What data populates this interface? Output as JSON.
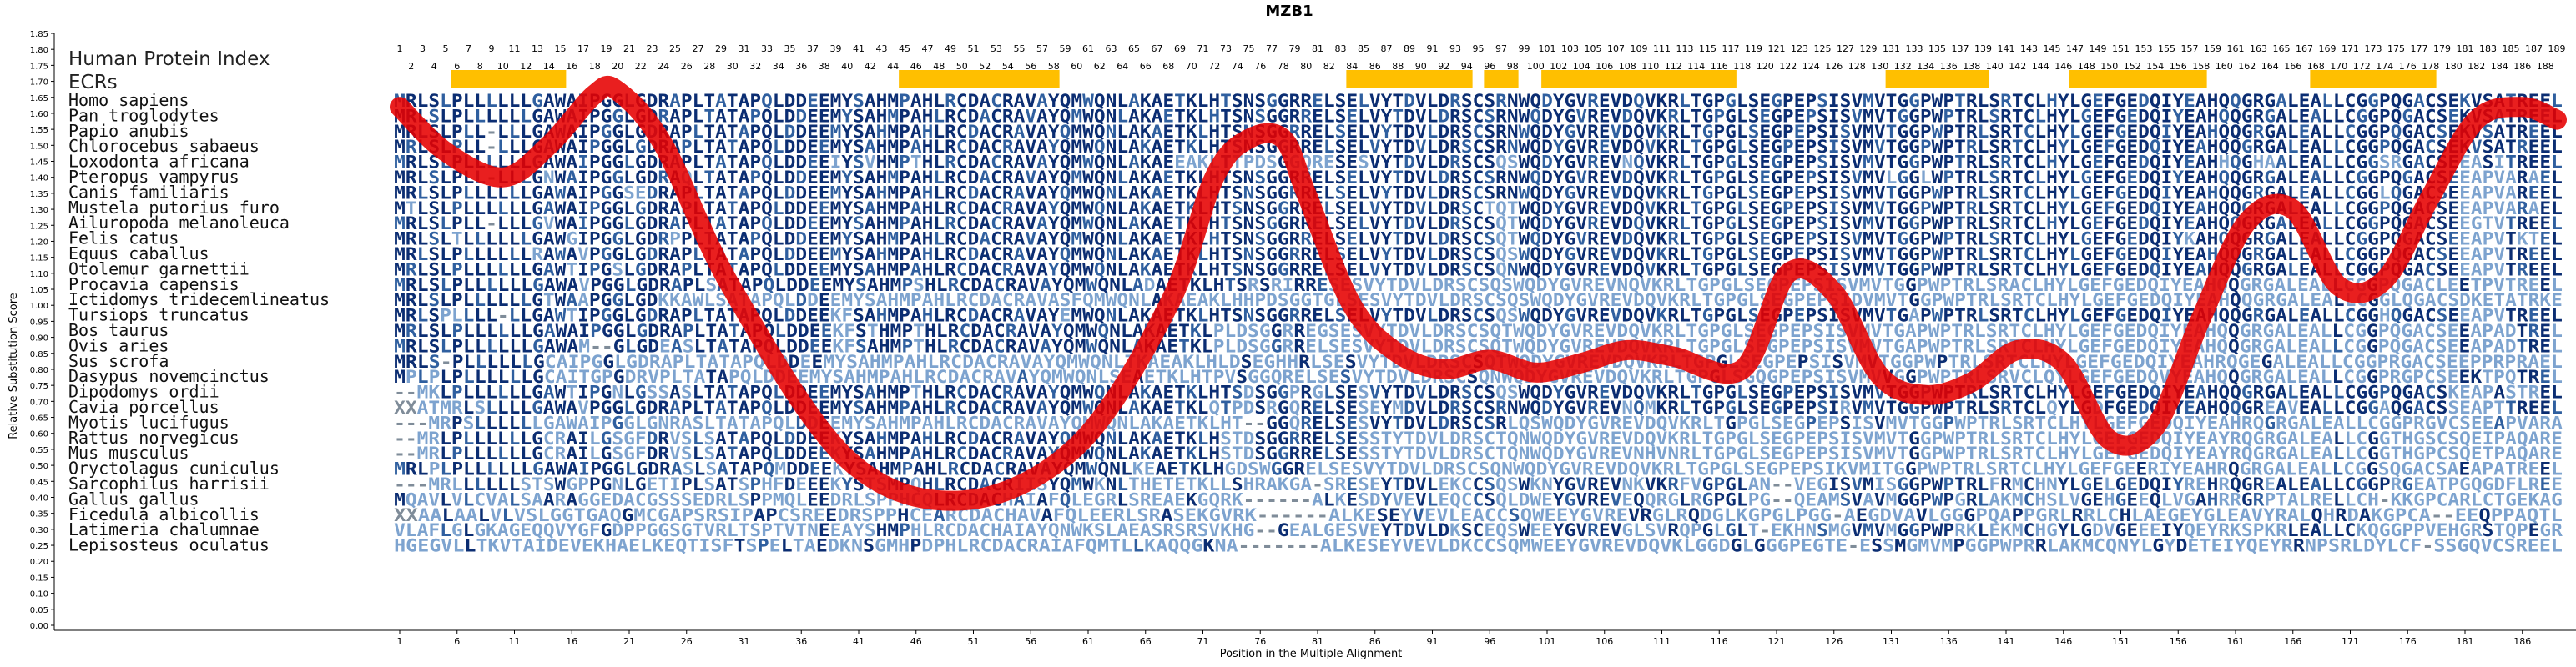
{
  "chart_data": {
    "type": "line",
    "title": "MZB1",
    "xlabel": "Position in the Multiple Alignment",
    "ylabel": "Relative Substitution Score",
    "ylim": [
      0,
      1.85
    ],
    "y_ticks": [
      "0.00",
      "0.05",
      "0.10",
      "0.15",
      "0.20",
      "0.25",
      "0.30",
      "0.35",
      "0.40",
      "0.45",
      "0.50",
      "0.55",
      "0.60",
      "0.65",
      "0.70",
      "0.75",
      "0.80",
      "0.85",
      "0.90",
      "0.95",
      "1.00",
      "1.05",
      "1.10",
      "1.15",
      "1.20",
      "1.25",
      "1.30",
      "1.35",
      "1.40",
      "1.45",
      "1.50",
      "1.55",
      "1.60",
      "1.65",
      "1.70",
      "1.75",
      "1.80",
      "1.85"
    ],
    "x_ticks": [
      1,
      6,
      11,
      16,
      21,
      26,
      31,
      36,
      41,
      46,
      51,
      56,
      61,
      66,
      71,
      76,
      81,
      86,
      91,
      96,
      101,
      106,
      111,
      116,
      121,
      126,
      131,
      136,
      141,
      146,
      151,
      156,
      161,
      166,
      171,
      176,
      181,
      186
    ],
    "alignment_length": 189,
    "human_protein_index_label": "Human Protein Index",
    "ecrs_label": "ECRs",
    "ecr_regions": [
      [
        6,
        15
      ],
      [
        45,
        58
      ],
      [
        84,
        94
      ],
      [
        96,
        98
      ],
      [
        101,
        117
      ],
      [
        131,
        139
      ],
      [
        147,
        158
      ],
      [
        168,
        178
      ]
    ],
    "curve": {
      "name": "",
      "x": [
        1,
        5,
        10,
        14,
        18,
        20,
        24,
        30,
        40,
        50,
        60,
        68,
        72,
        75,
        78,
        80,
        84,
        88,
        92,
        96,
        100,
        104,
        108,
        112,
        118,
        122,
        126,
        130,
        134,
        138,
        142,
        146,
        150,
        154,
        158,
        162,
        166,
        170,
        174,
        178,
        182,
        186,
        189
      ],
      "y": [
        1.62,
        1.48,
        1.4,
        1.5,
        1.66,
        1.67,
        1.5,
        1.05,
        0.52,
        0.39,
        0.56,
        1.0,
        1.4,
        1.52,
        1.52,
        1.35,
        1.0,
        0.85,
        0.8,
        0.83,
        0.79,
        0.82,
        0.86,
        0.84,
        0.8,
        1.1,
        1.04,
        0.78,
        0.72,
        0.76,
        0.86,
        0.82,
        0.58,
        0.62,
        0.96,
        1.26,
        1.3,
        1.06,
        1.08,
        1.34,
        1.58,
        1.62,
        1.58
      ]
    },
    "species": [
      {
        "name": "Homo sapiens",
        "seq": "MRLSLPLLLLLLGAWAIPGGLGDRAPLTATAPQLDDEEMYSAHMPAHLRCDACRAVAYQMWQNLAKAETKLHTSNSGGRRELSELVYTDVLDRSCSRNWQDYGVREVDQVKRLTGPGLSEGPEPSISVMVTGGPWPTRLSRTCLHYLGEFGEDQIYEAHQQGRGALEALLCGGPQGACSEKVSATREEL"
      },
      {
        "name": "Pan troglodytes",
        "seq": "MRLSLPLLLLLLGAWAIPGGLGDRAPLTATAPQLDDEEMYSAHMPAHLRCDACRAVAYQMWQNLAKAETKLHTSNSGGRRELSELVYTDVLDRSCSRNWQDYGVREVDQVKRLTGPGLSEGPEPSISVMVTGGPWPTRLSRTCLHYLGEFGEDQIYEAHQQGRGALEALLCGGPQGACSEKVSATREEL"
      },
      {
        "name": "Papio anubis",
        "seq": "MRLSLPLL-LLLGAWAIPGGLGDRAPLTATAPQLDDEEMYSAHMPAHLRCDACRAVAYQMWQNLAKAETKLHTSNSGGRRELSELVYTDVLDRSCSRNWQDYGVREVDQVKRLTGPGLSEGPEPSISVMVTGGPWPTRLSRTCLHYLGEFGEDQIYEAHQQGRGALEALLCGGPQGACSEKVSATREEL"
      },
      {
        "name": "Chlorocebus sabaeus",
        "seq": "MRLSLPLL-LLLGAWAIPGGLGDRAPLTATAPQLDDEEMYSAHMPAHLRCDACRAVAYQMWQNLAKAETKLHTSNSGGRRELSELVYTDVLDRSCSRNWQDYGVREVDQVKRLTGPGLSEGPEPSISVMVTGGPWPTRLSRTCLHYLGEFGEDQIYEAHQQGRGALEALLCGGPQGACSEKVSATREEL"
      },
      {
        "name": "Loxodonta africana",
        "seq": "MRLSLPLLLLLLGAWAIPGGLGDRAPLTATAPQLDDEEIYSVHMPTHLRCDACRAVAYQMWQNLAKAEEAKLTTPDSGGQRESESVYTDVLDRSCSQSWQDYGVREVNQVKRLTGPGLSEGPEPSISVMVTGGPWPTRLSRTCLHYLGEFGEDQIYEAHHQGHAALEALLCGGSRGACSEEASITREEL"
      },
      {
        "name": "Pteropus vampyrus",
        "seq": "MRLSLPLL-LLLGNWAIPGGLGDRAQLTATAPQLDDEEMYSAHMPAHLRCDACRAVAYQMWQNLAKAETKLHTSNSGGRRELSELVYTDVLDRSCSRNWQDYGVREVDQVKRLTGPGLSEGPEPSISVMVLGGLWPTRLSRTCLHYLGEFGEDQIYEAHQQGRGALEALLCGGPQGACSEEAPVARAEL"
      },
      {
        "name": "Canis familiaris",
        "seq": "MRLSLPLLLLLLGAWAIPGGSEDRAPLTATAPQLDDEEMYSAHMPAHLRCDACRAVAYQMWQNLAKAETKLHTSNSGGRRELSELVYTDVLDRSCSRNWQDYGVREVDQVKRLTGPGLSEGPEPSISVMVTGGPWPTRLSRTCLHYLGEFGEDQIYEAHQQGRGALEALLCGGLQGACSEEAPVAREEL"
      },
      {
        "name": "Mustela putorius furo",
        "seq": "MTLSLPLLLLLLGAWAIPGGLGDRAPLTATAPQLDDEEMYSAHMPAHLRCDACRAVAYQMWQNLAKAETKLHTSNSGGRRELSELVYTDVLDRSCTQTWQDYGVREVDQVKRLTGPGLSEGPEPSISVMVTGGPWPTRLSRTCLHYLGEFGEDQIYEAHQQGRGALEALLCGGPQGACSEEAPVARAEL"
      },
      {
        "name": "Ailuropoda melanoleuca",
        "seq": "MRLSLPLL-LLLGVWAIPGGLGDRAPLTATAPQLDDEEMYSAHMPAHLRCDACRAVAYQMWQNLAKAETKLHTSNSGGRRELSELVYTDVLDRSCSQTWQDYGVREVDQVKRLTGPGLSEGPEPSISVMVTGGPWPTRLSRTCLHYLGEFGEDQIYEAHQQGRGALEALLCGGPQGACSEEGTVTREEL"
      },
      {
        "name": "Felis catus",
        "seq": "MRLSLTLLLLLLGAWGIPGGLGDRPPLTATAPQLDDEEMYSAHMPAHLRCDACRAVAYQMWQNLAKAETKLHTSNSGGRRELSELVYTDVLDRSCSQTWQDYGVREVDQVKRLTGPGLSEGPEPSISVMVTGGPWPTRLSRTCLHYLGEFGEDQIYKAHQQGRGALEALLCGGPQGACSEEAPVTKTEL"
      },
      {
        "name": "Equus caballus",
        "seq": "MRLSLPLLLLLLRAWAVPGGLGDRAPLTATAPQLDDEEMYSAHMPAHLRCDACRAVAYQMWQNLAKAETKLHTSNSGGRRELSELVYTDVLDRSCSQSWQDYGVREVDQVKRLTGPGLSEGPEPSISVMVTGGPWPTRLSRTCLHYLGEFGEDQIYEAHQQGRGALEALLCGGPQGACSEEAPVTREEL"
      },
      {
        "name": "Otolemur garnettii",
        "seq": "MRLSLPLLLLLLGAWTIPGSLGDRAPLTATAPQLDDEEMYSAHMPAHLRCDACRAVAYQMWQNLAKAETKLHTSNSGGRRELSELVYTDVLDRSCSQNWQDYGVREVDQVKRLTGPGLSEGPEPSISVMVTGGPWPTRLSRTCLHYLGEFGEDQIYEAHQQGRGALEALLCGGPQGACSEEAPVTREEL"
      },
      {
        "name": "Procavia capensis",
        "seq": "MRLSLPLLLLLLGAWAVPGGLGDRAPLSATAPQLDDEEMYSAHMPSHLRCDACRAVAYQMWQNLADAETKLHTSRSRIRRESESVYTDVLDRSCSQSWQDYGVREVNQVKRLTGPGLSEGPEPSISVMVTGGPWPTRLSRACLHYLGEFGEDQIYEAHQQGRGALEALLCGGPQGACLEETPVTREEL"
      },
      {
        "name": "Ictidomys tridecemlineatus",
        "seq": "MRLSLPLLLLLLGTWAAPGGLGDKKAWLSATAPQLDDEEMYSAHMPAHLRCDACRAVASFQMWQNLAKAEAKLHHPDSGGTGLSESVYTDVLDRSCSQSWQDYGVREVDQVKRLTGPGLSEGPEPSIDVMVTGGPWPTRLSRTCLHYLGEFGEDQIYEAHQQGRGALEALLCGGLQGACSDKETATRKEL"
      },
      {
        "name": "Tursiops truncatus",
        "seq": "MRLSPLLLL-LLGAWTIPGGLGDRAPLTATAPQLDDEEKFSAHMPAHLRCDACRAVAYEMWQNLAKAETKLHTSNSGGRRELSELVYTDVLDRSCSQSWQDYGVREVDQVKRLTGPGLSEGPEPSISVMVTGAPWPTRLSRTCLHYLGEFGEDQIYEAHQQGRGALEALLCGGHQGACSEEAPVTREEL"
      },
      {
        "name": "Bos taurus",
        "seq": "MRLSLPLLLLLLGAWAIPGGLGDRAPLTATAPQLDDEEKFSTHMPTHLRCDACRAVAYQMWQNLAKAETKLPLDSGGRREGSESVYTDVLDRSCSQTWQDYGVREVDQVKRLTGPGLSEGPEPSISVMVTGAPWPTRLSRTCLHYLGEFGEDQIYEAHQQGRGALEALLCGGPQGACSEEAPADTREL"
      },
      {
        "name": "Ovis aries",
        "seq": "MRLSLPLLLLLLGAWAM--GLGDEASLTATAPQLDDEEKFSAHMPTHLRCDACRAVAYQMWQNLAKAETKLPLDSGGRRELSESVYTDVLDRSCSQTWQDYGVREVDQVKRLTGPGLSEGPEPSISVMVTGAPWPTRLSRTCLHYLGEFGEDQIYEAHQQGRGALEALLCGGPQGACSEEAPADTREL"
      },
      {
        "name": "Sus scrofa",
        "seq": "MRLS-PLLLLLLGCAIPGGLGDRAPLTATAPQLDDEEMYSAHMPAHLRCDACRAVAYQMWQNLTKAEAKLHLDSEGHHRLSESVYTDVLDRSCSQTWQDYGVREVDQVKRLTGPGLSEGPEPSISVMVTGGPWPTRLSRTCLHYLGEFGEDQIYEAHRQGEGALEALLCGGPRGACSEEPPRPRAEL"
      },
      {
        "name": "Dasypus novemcinctus",
        "seq": "MPLPLPLLLLLLGCAITGPGDRVPLTATAPQLDDEEMYSAHMPAHLRCDACRAVAYQMWQNLSEAETKLHTPVSGGQRELSESVYTDVLDRSCSQNWQDYGVREVDQVKRLTGPGLSGQGPEPSISVMVVGGPWPTRLSRVCLQYLGEFGEDQVYEAHQQGRGALEALLCGGPRGPCSEEKTPQTREL"
      },
      {
        "name": "Dipodomys ordii",
        "seq": "--MKLPLLLLLLGAWTIPGNLGSSASLTATAPQLDDEEMYSAHMPTHLRCDACRAVAYQMWQNLAKAETKLHTSDSGGPRGLSESVYTDVLDRSCSQSWQDYGVREVDQVKRLTGPGLSEGPEPSISVMVTGGPWPTRLSRTCLHYLGEFGEDQIYEAHQQGRGALEALLCGGPQGACSKEAPASTREL"
      },
      {
        "name": "Cavia porcellus",
        "seq": "XXATMRLSLLLLGAWAVPGGLGDRAPLTATAPQLDDEEMYSAHMPAHLRCDACRAVAYQMWQNLAKAETKLQTPDSRGQRELSESEYMDVLDRSCSRNWQDYGVREVNQMKRLTGPGLSEGPEPSIRVMVTGGPWPTRLSRTCLQYLGDFGEDQIYEAHQQGREAVEALLCGGAQGACSSEAPTTREEL"
      },
      {
        "name": "Myotis lucifugus",
        "seq": "---MRPSLLLLLLGAWAIPGGLGNRASLTATAPQLDDEEMYSAHMPAHLRCDACRAVAYQMWQNLAKAETKLHT--GGQRELSESVYTDVLDRSCSRLQSWQDYGVREVDQVKRLTGPGLSEGPEPSISVMVTGGPWPTRLSRTCLHYLGEFGEDQIYEAHRQGRGALEALLCGGPRGVCSEEAPVARAEL"
      },
      {
        "name": "Rattus norvegicus",
        "seq": "--MRLPLLLLLLGCRAILGSGFDRVSLSATAPQLDDEEKYSAHMPAHLRCDACRAVAYQMWQNLAKAETKLHSTDSGGRRELSESSTYTDVLDRSCTQNWQDYGVREVDQVKRLTGPGLSEGPEPSISVMVTGGPWPTRLSRTCLHYLGEFGEDQIYEAYRQGRGALEALLCGGTHGSCSQEIPAQAREL"
      },
      {
        "name": "Mus musculus",
        "seq": "--MRLPLLLLLLGCRAILGSGFDRVSLSATAPQLDDEEKYSAHMPAHLRCDACRAVAYQMWQNLAKAETKLHSTDSGGRRELSESSTYTDVLDRSCTQNWQDYGVREVNHVNRLTGPGLSEGPEPSISVMVTGGPWPTRLSRTCLHYLGEFGEDQIYEAYRQGRGALEALLCGGTHGPCSQETPAQAREL"
      },
      {
        "name": "Oryctolagus cuniculus",
        "seq": "MRLPLPLLLLLLGAWAIPGGLGDRASLSATAPQMDDEEKYSAHMPAHLRCDACRAVAYQMWQNLKEAETKLHGDSWGGRELSESVYTDVLDRSCSQNWQDYGVREVDQVKRLTGPGLSEGPEPSIKVMITGGPWPTRLSRTCLHYLGEFGEERIYEAHRQGRGALEALLCGGSQGACSAEAPATREEL"
      },
      {
        "name": "Sarcophilus harrisii",
        "seq": "---MRLLLLLLSTSWGPPGNLGETIPLSATSPHFDEEEKYSTSMPQHLRCDACRIISYQMWKNLTHETETKLLSHRAKGA-SRESEYTDVLEKCCSQSWKNYGVREVNKVKRFVGPGLAN--VEGISVMISGGPWPTRLFRMCHNYLGELGEDQIYREHRQGREALEALLCGGPRGEATPGQGDFLREEL"
      },
      {
        "name": "Gallus gallus",
        "seq": "MQAVLVLCVALSAARAGGEDACGSSSEDRLSPPMQLEEDRLSPPHCQLRCDACHAIAFQLEGRLSREAEKGQRK------ALKESDYVEVLEQCCSQLDWEYGVREVEQQRGLRGPGLPG--QEAMSVAVMGGPWPGRLAKMCHSLVGEHGEEQLVGAHRRGRPTALRELLCH-KKGPCARLCTGEKAGGAGGS"
      },
      {
        "name": "Ficedula albicollis",
        "seq": "XXAALAALVLVSLGGTGAQGMCGAPSRSIPAPCSREEDRSPPHCEARCDACHAVAFQLEERLSRASEKGVRK------ALKESEYVEVLEACCSQWEEYGVREVRGLRQDGLKGPGLPGG-AEGDVAVLGGGPQAPPGRLRRLCHLAEGEYGLEAVYRALQHRDAKGPCA--EEQPPAQTL"
      },
      {
        "name": "Latimeria chalumnae",
        "seq": "VLAFLGLGKAGEQQVYGFGDPPGGSGTVRLTSPTVTNEEAYSHMPHLRCDACHAIAYQNWKSLAEASRSRSVKHG--GEALGESVEYTDVLDKSCEQSWEEYGVREVGLSVRQPGLGLT-EKHNSMGVMVMGGPWPRKLEKMCHGYLGDVGEEEIYQEYRKSPKRLEALLCKQGGPPVEHGRSTQPEGRSRRSTAL"
      },
      {
        "name": "Lepisosteus oculatus",
        "seq": "HGEGVLLTKVTAIDEVEKHAELKEQTISFTSPELTAEDKNSGMHPDPHLRCDACRAIAFQMTLLKAQQGKNA-------ALKESEYVEVLDKCCSQMWEEYGVREVDQVKLGGDGLGGGPEGTE-ESSMGMVMPGGPWPRRLAKMCQNYLGYDETEIYQEYRRNPSRLDYLCF-SSGQVCSREEL"
      }
    ]
  }
}
